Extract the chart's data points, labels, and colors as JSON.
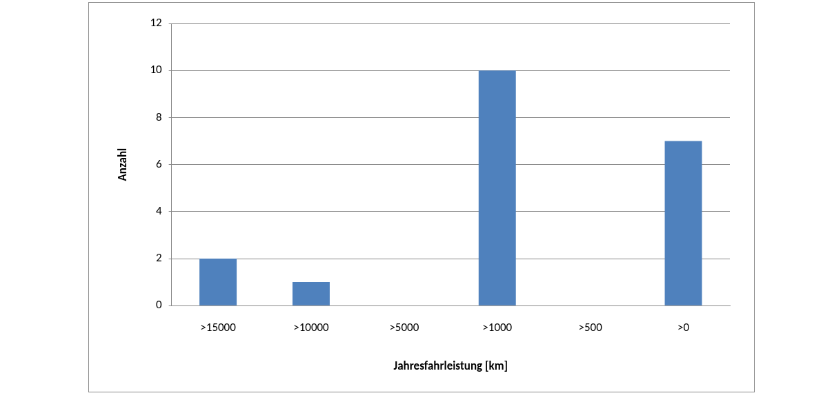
{
  "chart_data": {
    "type": "bar",
    "xlabel": "Jahresfahrleistung [km]",
    "ylabel": "Anzahl",
    "categories": [
      ">15000",
      ">10000",
      ">5000",
      ">1000",
      ">500",
      ">0"
    ],
    "values": [
      2,
      1,
      0,
      10,
      0,
      7
    ],
    "color": "#4f81bd",
    "ylim": [
      0,
      12
    ],
    "yticks": [
      0,
      2,
      4,
      6,
      8,
      10,
      12
    ],
    "grid": "y",
    "legend": false
  }
}
